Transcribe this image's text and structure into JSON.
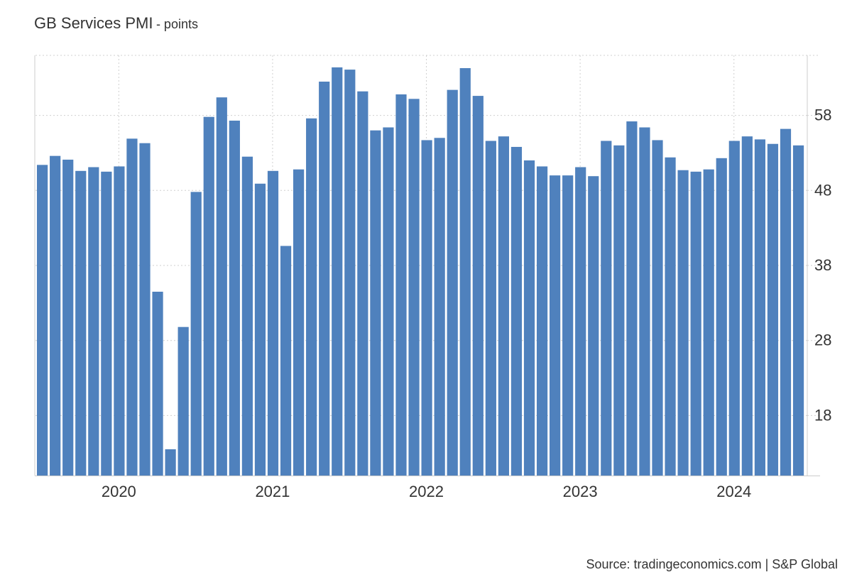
{
  "header": {
    "title": "GB Services PMI",
    "subtitle": "- points"
  },
  "footer": {
    "source": "Source: tradingeconomics.com | S&P Global"
  },
  "colors": {
    "bar": "#4f81bd",
    "grid": "#d0d0d0",
    "axis": "#cccccc",
    "text": "#333333"
  },
  "chart_data": {
    "type": "bar",
    "title": "GB Services PMI",
    "subtitle": "- points",
    "x": [
      "2019-07",
      "2019-08",
      "2019-09",
      "2019-10",
      "2019-11",
      "2019-12",
      "2020-01",
      "2020-02",
      "2020-03",
      "2020-04",
      "2020-05",
      "2020-06",
      "2020-07",
      "2020-08",
      "2020-09",
      "2020-10",
      "2020-11",
      "2020-12",
      "2021-01",
      "2021-02",
      "2021-03",
      "2021-04",
      "2021-05",
      "2021-06",
      "2021-07",
      "2021-08",
      "2021-09",
      "2021-10",
      "2021-11",
      "2021-12",
      "2022-01",
      "2022-02",
      "2022-03",
      "2022-04",
      "2022-05",
      "2022-06",
      "2022-07",
      "2022-08",
      "2022-09",
      "2022-10",
      "2022-11",
      "2022-12",
      "2023-01",
      "2023-02",
      "2023-03",
      "2023-04",
      "2023-05",
      "2023-06",
      "2023-07",
      "2023-08",
      "2023-09",
      "2023-10",
      "2023-11",
      "2023-12",
      "2024-01",
      "2024-02",
      "2024-03",
      "2024-04",
      "2024-05",
      "2024-06"
    ],
    "values": [
      51.4,
      52.6,
      52.1,
      50.6,
      51.1,
      50.5,
      51.2,
      54.9,
      54.3,
      34.5,
      13.5,
      29.8,
      47.8,
      57.8,
      60.4,
      57.3,
      52.5,
      48.9,
      50.6,
      40.6,
      50.8,
      57.6,
      62.5,
      64.4,
      64.1,
      61.2,
      56.0,
      56.4,
      60.8,
      60.2,
      54.7,
      55.0,
      61.4,
      64.3,
      60.6,
      54.6,
      55.2,
      53.8,
      52.0,
      51.2,
      50.0,
      50.0,
      51.1,
      49.9,
      54.6,
      54.0,
      57.2,
      56.4,
      54.7,
      52.4,
      50.7,
      50.5,
      50.8,
      52.3,
      54.6,
      55.2,
      54.8,
      54.2,
      56.2,
      54.0
    ],
    "xticks": [
      "2020",
      "2021",
      "2022",
      "2023",
      "2024"
    ],
    "yticks": [
      "18",
      "28",
      "38",
      "48",
      "58"
    ],
    "ylim": [
      10,
      66
    ],
    "grid": true,
    "legend": "none",
    "yaxis_side": "right"
  }
}
